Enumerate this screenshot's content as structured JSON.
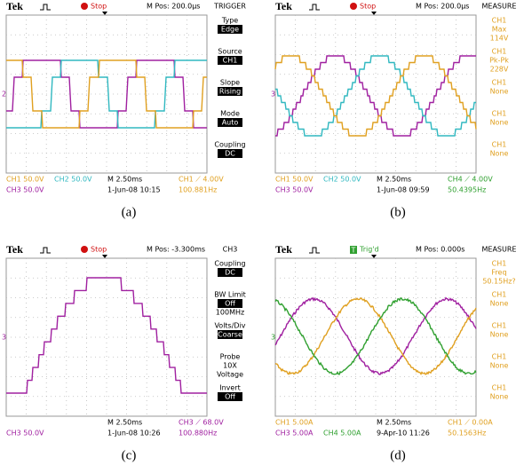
{
  "panels": [
    {
      "caption": "(a)",
      "header": {
        "brand": "Tek",
        "status": "Stop",
        "mpos": "M Pos: 200.0µs",
        "menu_title": "TRIGGER"
      },
      "menu": [
        {
          "title": "Type",
          "value": "Edge"
        },
        {
          "title": "Source",
          "value": "CH1"
        },
        {
          "title": "Slope",
          "value": "Rising"
        },
        {
          "title": "Mode",
          "value": "Auto"
        },
        {
          "title": "Coupling",
          "value": "DC"
        }
      ],
      "markers": [
        {
          "text": "2",
          "color": "#a020a0"
        }
      ],
      "footer": {
        "ch1": {
          "text": "CH1  50.0V",
          "color": "#e0a020"
        },
        "ch2": {
          "text": "CH2  50.0V",
          "color": "#30b8c0"
        },
        "timebase": {
          "text": "M 2.50ms"
        },
        "trigger": {
          "text": "CH1 ⟋ 4.00V",
          "color": "#e0a020"
        },
        "ch3": {
          "text": "CH3  50.0V",
          "color": "#a020a0"
        },
        "date": {
          "text": "1-Jun-08 10:15"
        },
        "frequency": {
          "text": "100.881Hz",
          "color": "#e0a020"
        }
      }
    },
    {
      "caption": "(b)",
      "header": {
        "brand": "Tek",
        "status": "Stop",
        "mpos": "M Pos: 200.0µs",
        "menu_title": "MEASURE"
      },
      "menu": [
        {
          "title": "CH1",
          "extra": [
            "Max",
            "114V"
          ]
        },
        {
          "title": "CH1",
          "extra": [
            "Pk-Pk",
            "228V"
          ]
        },
        {
          "title": "CH1",
          "extra": [
            "None"
          ]
        },
        {
          "title": "CH1",
          "extra": [
            "None"
          ]
        },
        {
          "title": "CH1",
          "extra": [
            "None"
          ]
        }
      ],
      "markers": [
        {
          "text": "3",
          "color": "#a020a0"
        }
      ],
      "footer": {
        "ch1": {
          "text": "CH1  50.0V",
          "color": "#e0a020"
        },
        "ch2": {
          "text": "CH2  50.0V",
          "color": "#30b8c0"
        },
        "timebase": {
          "text": "M 2.50ms"
        },
        "trigger": {
          "text": "CH4 ⟋ 4.00V",
          "color": "#30a030"
        },
        "ch3": {
          "text": "CH3  50.0V",
          "color": "#a020a0"
        },
        "date": {
          "text": "1-Jun-08 09:59"
        },
        "frequency": {
          "text": "50.4395Hz",
          "color": "#30a030"
        }
      }
    },
    {
      "caption": "(c)",
      "header": {
        "brand": "Tek",
        "status": "Stop",
        "mpos": "M Pos: -3.300ms",
        "menu_title": "CH3"
      },
      "menu": [
        {
          "title": "Coupling",
          "value": "DC"
        },
        {
          "title": "BW Limit",
          "value": "Off",
          "extra": [
            "100MHz"
          ]
        },
        {
          "title": "Volts/Div",
          "value": "Coarse"
        },
        {
          "title": "Probe",
          "extra": [
            "10X",
            "Voltage"
          ]
        },
        {
          "title": "Invert",
          "value": "Off"
        }
      ],
      "markers": [
        {
          "text": "3",
          "color": "#a020a0"
        }
      ],
      "footer": {
        "timebase": {
          "text": "M 2.50ms"
        },
        "trigger": {
          "text": "CH3 ⟋ 68.0V",
          "color": "#a020a0"
        },
        "ch3": {
          "text": "CH3  50.0V",
          "color": "#a020a0"
        },
        "date": {
          "text": "1-Jun-08 10:26"
        },
        "frequency": {
          "text": "100.880Hz",
          "color": "#a020a0"
        }
      }
    },
    {
      "caption": "(d)",
      "header": {
        "brand": "Tek",
        "status": "Trig'd",
        "icon": "T",
        "mpos": "M Pos: 0.000s",
        "menu_title": "MEASURE"
      },
      "menu": [
        {
          "title": "CH1",
          "extra": [
            "Freq",
            "50.15Hz?"
          ]
        },
        {
          "title": "CH1",
          "extra": [
            "None"
          ]
        },
        {
          "title": "CH1",
          "extra": [
            "None"
          ]
        },
        {
          "title": "CH1",
          "extra": [
            "None"
          ]
        },
        {
          "title": "CH1",
          "extra": [
            "None"
          ]
        }
      ],
      "markers": [
        {
          "text": "3",
          "color": "#30a030"
        }
      ],
      "footer": {
        "ch1": {
          "text": "CH1  5.00A",
          "color": "#e0a020"
        },
        "timebase": {
          "text": "M 2.50ms"
        },
        "trigger": {
          "text": "CH1 ⟋ 0.00A",
          "color": "#e0a020"
        },
        "ch3": {
          "text": "CH3  5.00A",
          "color": "#a020a0"
        },
        "ch4": {
          "text": "CH4  5.00A",
          "color": "#30a030"
        },
        "date": {
          "text": "9-Apr-10 11:26"
        },
        "frequency": {
          "text": "50.1563Hz",
          "color": "#e0a020"
        }
      }
    }
  ]
}
